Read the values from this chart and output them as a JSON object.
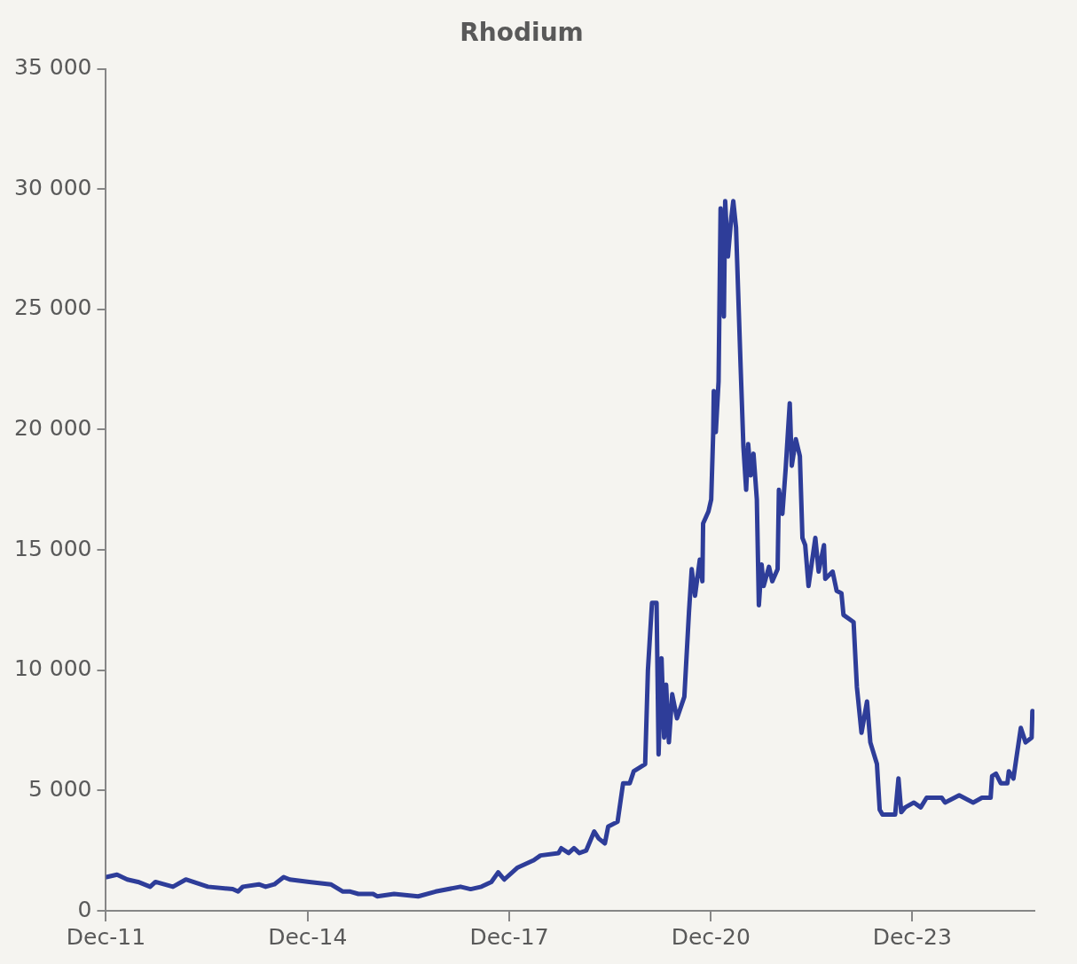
{
  "chart_data": {
    "type": "line",
    "title": "Rhodium",
    "x": [
      "2011-12-03",
      "2012-01-30",
      "2012-03-26",
      "2012-05-23",
      "2012-07-28",
      "2012-08-26",
      "2012-11-29",
      "2013-02-07",
      "2013-06-07",
      "2013-10-20",
      "2013-11-18",
      "2013-12-14",
      "2014-03-11",
      "2014-04-17",
      "2014-06-03",
      "2014-07-24",
      "2014-08-26",
      "2014-12-10",
      "2015-04-06",
      "2015-06-11",
      "2015-07-21",
      "2015-09-03",
      "2015-11-22",
      "2015-12-14",
      "2016-03-15",
      "2016-07-24",
      "2016-10-27",
      "2017-03-11",
      "2017-05-05",
      "2017-07-03",
      "2017-08-26",
      "2017-10-02",
      "2017-11-04",
      "2018-01-16",
      "2018-04-13",
      "2018-05-20",
      "2018-08-26",
      "2018-09-10",
      "2018-10-20",
      "2018-11-18",
      "2018-12-17",
      "2019-01-23",
      "2019-03-08",
      "2019-04-02",
      "2019-05-05",
      "2019-05-23",
      "2019-07-13",
      "2019-08-12",
      "2019-09-17",
      "2019-10-09",
      "2019-12-10",
      "2019-12-25",
      "2020-01-16",
      "2020-02-10",
      "2020-02-21",
      "2020-03-08",
      "2020-03-22",
      "2020-04-02",
      "2020-04-17",
      "2020-05-05",
      "2020-05-31",
      "2020-07-10",
      "2020-08-04",
      "2020-08-19",
      "2020-09-06",
      "2020-10-02",
      "2020-10-16",
      "2020-10-20",
      "2020-11-18",
      "2020-12-03",
      "2020-12-14",
      "2020-12-17",
      "2020-12-28",
      "2021-01-12",
      "2021-01-23",
      "2021-02-10",
      "2021-02-17",
      "2021-03-04",
      "2021-03-22",
      "2021-04-02",
      "2021-04-17",
      "2021-05-12",
      "2021-05-27",
      "2021-06-11",
      "2021-06-22",
      "2021-07-06",
      "2021-07-21",
      "2021-08-08",
      "2021-08-19",
      "2021-09-03",
      "2021-09-14",
      "2021-10-13",
      "2021-10-31",
      "2021-11-29",
      "2021-12-06",
      "2021-12-25",
      "2022-01-12",
      "2022-02-03",
      "2022-02-14",
      "2022-03-08",
      "2022-03-30",
      "2022-04-13",
      "2022-04-28",
      "2022-05-16",
      "2022-06-22",
      "2022-07-10",
      "2022-08-08",
      "2022-08-15",
      "2022-09-24",
      "2022-10-16",
      "2022-11-11",
      "2022-11-22",
      "2023-01-16",
      "2023-02-03",
      "2023-02-28",
      "2023-03-30",
      "2023-04-17",
      "2023-05-23",
      "2023-06-07",
      "2023-06-22",
      "2023-08-30",
      "2023-09-17",
      "2023-10-02",
      "2023-10-24",
      "2023-12-10",
      "2024-01-16",
      "2024-02-17",
      "2024-05-09",
      "2024-05-27",
      "2024-08-12",
      "2024-10-27",
      "2024-12-14",
      "2025-01-30",
      "2025-02-07",
      "2025-02-28",
      "2025-03-26",
      "2025-05-01",
      "2025-05-09",
      "2025-06-03",
      "2025-06-18",
      "2025-07-13",
      "2025-08-08",
      "2025-09-10",
      "2025-09-14"
    ],
    "series": [
      {
        "color": "#2e3d99",
        "values": [
          1400,
          1500,
          1300,
          1200,
          1000,
          1200,
          1000,
          1300,
          1000,
          900,
          800,
          1000,
          1100,
          1000,
          1100,
          1400,
          1300,
          1200,
          1100,
          800,
          800,
          700,
          700,
          600,
          700,
          600,
          800,
          1000,
          900,
          1000,
          1200,
          1600,
          1300,
          1800,
          2100,
          2300,
          2400,
          2600,
          2400,
          2600,
          2400,
          2500,
          3300,
          3000,
          2800,
          3500,
          3700,
          5300,
          5300,
          5800,
          6100,
          10000,
          12800,
          12800,
          6500,
          10500,
          7200,
          9400,
          7000,
          9000,
          8000,
          8900,
          12400,
          14200,
          13100,
          14600,
          13700,
          16100,
          16600,
          17100,
          19900,
          21600,
          19900,
          22000,
          29200,
          24700,
          29500,
          27200,
          28800,
          29500,
          28400,
          22600,
          19300,
          17500,
          19400,
          18100,
          19000,
          17100,
          12700,
          14400,
          13500,
          14300,
          13700,
          14200,
          17500,
          16500,
          18400,
          21100,
          18500,
          19600,
          18900,
          15500,
          15200,
          13500,
          15500,
          14100,
          15200,
          13800,
          14100,
          13300,
          13200,
          12300,
          12000,
          9300,
          7400,
          8700,
          7000,
          6100,
          4200,
          4000,
          4000,
          5500,
          4100,
          4300,
          4500,
          4300,
          4700,
          4700,
          4500,
          4800,
          4500,
          4700,
          4700,
          5600,
          5700,
          5300,
          5300,
          5800,
          5500,
          6300,
          7600,
          7000,
          7200,
          8300
        ]
      }
    ],
    "xlim": [
      "2011-12-01",
      "2025-09-25"
    ],
    "xticks": [
      {
        "value": "2011-12",
        "label": "Dec-11"
      },
      {
        "value": "2014-12",
        "label": "Dec-14"
      },
      {
        "value": "2017-12",
        "label": "Dec-17"
      },
      {
        "value": "2020-12",
        "label": "Dec-20"
      },
      {
        "value": "2023-12",
        "label": "Dec-23"
      }
    ],
    "ylim": [
      0,
      35000
    ],
    "yticks": [
      {
        "value": 0,
        "label": "0"
      },
      {
        "value": 5000,
        "label": "5 000"
      },
      {
        "value": 10000,
        "label": "10 000"
      },
      {
        "value": 15000,
        "label": "15 000"
      },
      {
        "value": 20000,
        "label": "20 000"
      },
      {
        "value": 25000,
        "label": "25 000"
      },
      {
        "value": 30000,
        "label": "30 000"
      },
      {
        "value": 35000,
        "label": "35 000"
      }
    ],
    "grid": false,
    "legend": false,
    "marker": "none",
    "line_style": "solid"
  }
}
